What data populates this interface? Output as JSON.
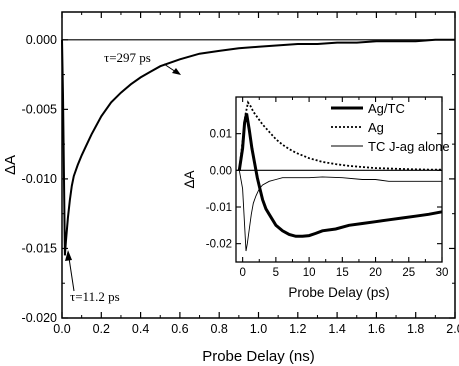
{
  "chart_data": [
    {
      "type": "line",
      "xlabel": "Probe Delay (ns)",
      "ylabel": "ΔA",
      "xlim": [
        0.0,
        2.0
      ],
      "ylim": [
        -0.02,
        0.002
      ],
      "xticks": [
        "0.0",
        "0.2",
        "0.4",
        "0.6",
        "0.8",
        "1.0",
        "1.2",
        "1.4",
        "1.6",
        "1.8",
        "2.0"
      ],
      "yticks": [
        "0.000",
        "-0.005",
        "-0.010",
        "-0.015",
        "-0.020"
      ],
      "series": [
        {
          "x": [
            0.0,
            0.005,
            0.01,
            0.015,
            0.02,
            0.03,
            0.04,
            0.05,
            0.06,
            0.08,
            0.1,
            0.12,
            0.15,
            0.2,
            0.25,
            0.3,
            0.35,
            0.4,
            0.45,
            0.5,
            0.6,
            0.7,
            0.8,
            0.9,
            1.0,
            1.1,
            1.2,
            1.3,
            1.4,
            1.5,
            1.6,
            1.7,
            1.8,
            1.9,
            2.0
          ],
          "y": [
            0.0,
            -0.004,
            -0.01,
            -0.0155,
            -0.0145,
            -0.0128,
            -0.0115,
            -0.0105,
            -0.0098,
            -0.009,
            -0.0083,
            -0.0077,
            -0.0068,
            -0.0055,
            -0.0045,
            -0.0038,
            -0.0032,
            -0.0027,
            -0.0023,
            -0.0019,
            -0.0014,
            -0.001,
            -0.0008,
            -0.0006,
            -0.0005,
            -0.0004,
            -0.0003,
            -0.0003,
            -0.0002,
            -0.0002,
            -0.0001,
            -0.0001,
            -0.0001,
            0.0,
            0.0
          ]
        }
      ],
      "annotations": [
        "τ=297 ps",
        "τ=11.2 ps"
      ],
      "grid": false,
      "reference_line": 0
    },
    {
      "type": "line",
      "xlabel": "Probe Delay (ps)",
      "ylabel": "ΔA",
      "xlim": [
        -1,
        30
      ],
      "ylim": [
        -0.025,
        0.02
      ],
      "xticks": [
        "0",
        "5",
        "10",
        "15",
        "20",
        "25",
        "30"
      ],
      "yticks": [
        "0.01",
        "0.00",
        "-0.01",
        "-0.02"
      ],
      "legend_position": "top-right",
      "series": [
        {
          "name": "Ag/TC",
          "style": "thick-solid",
          "x": [
            -0.5,
            0.0,
            0.3,
            0.6,
            1.0,
            1.4,
            1.8,
            2.2,
            2.6,
            3.0,
            3.5,
            4.0,
            5.0,
            6.0,
            7.0,
            8.0,
            9.0,
            10.0,
            11.0,
            12.0,
            14.0,
            16.0,
            18.0,
            20.0,
            22.0,
            24.0,
            26.0,
            28.0,
            30.0
          ],
          "y": [
            0.0,
            0.006,
            0.013,
            0.0155,
            0.011,
            0.006,
            0.002,
            -0.002,
            -0.005,
            -0.008,
            -0.0105,
            -0.012,
            -0.015,
            -0.0165,
            -0.0175,
            -0.018,
            -0.018,
            -0.0178,
            -0.0172,
            -0.0165,
            -0.016,
            -0.015,
            -0.0145,
            -0.014,
            -0.0135,
            -0.013,
            -0.0125,
            -0.012,
            -0.0113
          ]
        },
        {
          "name": "Ag",
          "style": "dotted",
          "x": [
            -0.5,
            0.0,
            0.4,
            0.8,
            1.2,
            1.6,
            2.0,
            3.0,
            4.0,
            5.0,
            6.0,
            7.0,
            8.0,
            10.0,
            12.0,
            14.0,
            16.0,
            18.0,
            20.0,
            22.0,
            25.0,
            28.0,
            30.0
          ],
          "y": [
            0.0,
            0.008,
            0.015,
            0.0185,
            0.0175,
            0.016,
            0.015,
            0.0125,
            0.0105,
            0.0085,
            0.007,
            0.0058,
            0.0048,
            0.0033,
            0.0023,
            0.0017,
            0.0012,
            0.0009,
            0.0006,
            0.0005,
            0.0003,
            0.0002,
            0.0002
          ]
        },
        {
          "name": "TC J-ag alone",
          "style": "thin-solid",
          "x": [
            -0.5,
            0.0,
            0.3,
            0.5,
            0.7,
            1.0,
            1.3,
            1.6,
            2.0,
            2.5,
            3.0,
            4.0,
            5.0,
            6.0,
            8.0,
            10.0,
            12.0,
            15.0,
            18.0,
            20.0,
            22.0,
            25.0,
            28.0,
            30.0
          ],
          "y": [
            0.0,
            -0.005,
            -0.015,
            -0.022,
            -0.02,
            -0.016,
            -0.012,
            -0.009,
            -0.007,
            -0.005,
            -0.004,
            -0.003,
            -0.0025,
            -0.002,
            -0.002,
            -0.002,
            -0.0018,
            -0.002,
            -0.0025,
            -0.0025,
            -0.003,
            -0.003,
            -0.003,
            -0.003
          ]
        }
      ],
      "grid": false,
      "reference_line": 0
    }
  ]
}
